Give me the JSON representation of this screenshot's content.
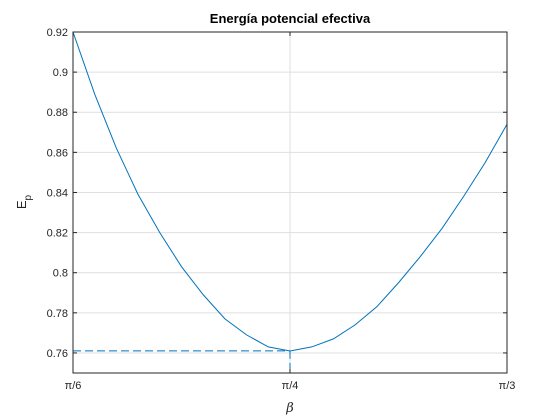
{
  "chart_data": {
    "type": "line",
    "title": "Energía potencial efectiva",
    "xlabel": "β",
    "ylabel_main": "E",
    "ylabel_sub": "p",
    "xlim": [
      0.5235987756,
      1.0471975512
    ],
    "ylim": [
      0.75,
      0.92
    ],
    "x_ticks": [
      {
        "value": 0.5235987756,
        "label": "π/6"
      },
      {
        "value": 0.7853981634,
        "label": "π/4"
      },
      {
        "value": 1.0471975512,
        "label": "π/3"
      }
    ],
    "y_ticks": [
      {
        "value": 0.76,
        "label": "0.76"
      },
      {
        "value": 0.78,
        "label": "0.78"
      },
      {
        "value": 0.8,
        "label": "0.8"
      },
      {
        "value": 0.82,
        "label": "0.82"
      },
      {
        "value": 0.84,
        "label": "0.84"
      },
      {
        "value": 0.86,
        "label": "0.86"
      },
      {
        "value": 0.88,
        "label": "0.88"
      },
      {
        "value": 0.9,
        "label": "0.9"
      },
      {
        "value": 0.92,
        "label": "0.92"
      }
    ],
    "grid": true,
    "series": [
      {
        "color": "#0072BD",
        "x": [
          0.5236,
          0.5498,
          0.576,
          0.6021,
          0.6283,
          0.6545,
          0.6807,
          0.7069,
          0.733,
          0.7592,
          0.7854,
          0.8116,
          0.8378,
          0.8639,
          0.8901,
          0.9163,
          0.9425,
          0.9687,
          0.9948,
          1.021,
          1.0472
        ],
        "y": [
          0.92,
          0.889,
          0.862,
          0.839,
          0.82,
          0.803,
          0.789,
          0.777,
          0.769,
          0.763,
          0.761,
          0.763,
          0.767,
          0.774,
          0.783,
          0.795,
          0.808,
          0.822,
          0.838,
          0.855,
          0.874
        ]
      }
    ],
    "minimum": {
      "x": 0.7853981634,
      "y": 0.761
    },
    "minimum_marker_style": "dashed"
  }
}
